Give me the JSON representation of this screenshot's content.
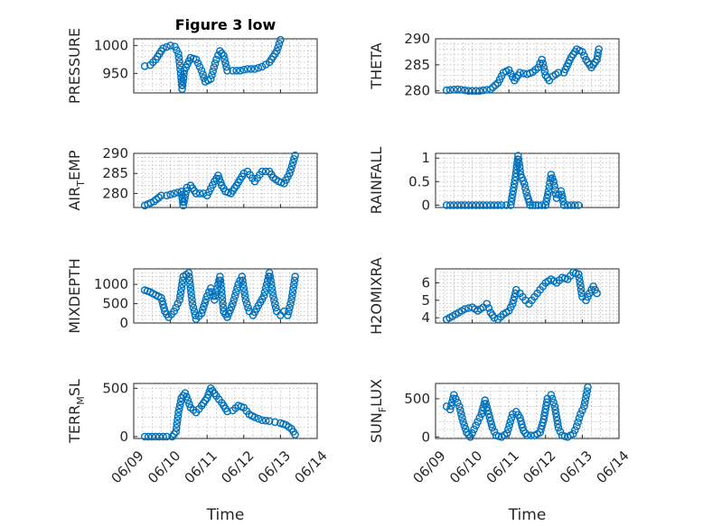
{
  "figure_title": "Figure 3 low",
  "x_label": "Time",
  "x_tick_labels": [
    "06/09",
    "06/10",
    "06/11",
    "06/12",
    "06/13",
    "06/14"
  ],
  "marker_color": "#0072bd",
  "chart_data": [
    {
      "type": "scatter",
      "id": "pressure",
      "title": "Figure 3 low",
      "ylabel": "PRESSURE",
      "ylabel_sub": "",
      "ylim": [
        915,
        1012
      ],
      "yticks": [
        950,
        1000
      ],
      "ytick_labels": [
        "950",
        "1000"
      ],
      "xlabel": "",
      "xlim": [
        0,
        5
      ],
      "grid": true,
      "anchors": [
        [
          0.3,
          963
        ],
        [
          0.45,
          965
        ],
        [
          0.6,
          975
        ],
        [
          0.8,
          995
        ],
        [
          1.0,
          1000
        ],
        [
          1.12,
          998
        ],
        [
          1.22,
          985
        ],
        [
          1.28,
          950
        ],
        [
          1.32,
          922
        ],
        [
          1.38,
          955
        ],
        [
          1.55,
          978
        ],
        [
          1.7,
          975
        ],
        [
          1.85,
          955
        ],
        [
          1.95,
          935
        ],
        [
          2.1,
          940
        ],
        [
          2.25,
          975
        ],
        [
          2.35,
          990
        ],
        [
          2.45,
          982
        ],
        [
          2.55,
          955
        ],
        [
          2.7,
          955
        ],
        [
          2.9,
          955
        ],
        [
          3.1,
          958
        ],
        [
          3.3,
          958
        ],
        [
          3.5,
          962
        ],
        [
          3.7,
          970
        ],
        [
          3.9,
          990
        ],
        [
          4.0,
          1010
        ]
      ]
    },
    {
      "type": "scatter",
      "id": "theta",
      "title": "",
      "ylabel": "THETA",
      "ylabel_sub": "",
      "ylim": [
        279.6,
        290
      ],
      "yticks": [
        280,
        285,
        290
      ],
      "ytick_labels": [
        "280",
        "285",
        "290"
      ],
      "xlabel": "",
      "xlim": [
        0,
        5
      ],
      "grid": true,
      "anchors": [
        [
          0.3,
          280.1
        ],
        [
          0.6,
          280.3
        ],
        [
          0.9,
          280.0
        ],
        [
          1.2,
          280.0
        ],
        [
          1.5,
          280.3
        ],
        [
          1.7,
          281.5
        ],
        [
          1.85,
          283.5
        ],
        [
          2.0,
          284.0
        ],
        [
          2.15,
          282.0
        ],
        [
          2.3,
          283.5
        ],
        [
          2.5,
          283.2
        ],
        [
          2.65,
          283.6
        ],
        [
          2.8,
          284.5
        ],
        [
          2.9,
          286.0
        ],
        [
          3.0,
          283.0
        ],
        [
          3.1,
          282.0
        ],
        [
          3.2,
          282.8
        ],
        [
          3.35,
          283.5
        ],
        [
          3.5,
          283.5
        ],
        [
          3.7,
          286.5
        ],
        [
          3.85,
          288.0
        ],
        [
          4.0,
          287.5
        ],
        [
          4.1,
          286.0
        ],
        [
          4.25,
          284.5
        ],
        [
          4.4,
          286.0
        ],
        [
          4.45,
          288.0
        ]
      ]
    },
    {
      "type": "scatter",
      "id": "air_temp",
      "title": "",
      "ylabel": "AIR",
      "ylabel_sub": "T",
      "ylabel_suffix": "EMP",
      "ylim": [
        276.5,
        290
      ],
      "yticks": [
        280,
        285,
        290
      ],
      "ytick_labels": [
        "280",
        "285",
        "290"
      ],
      "xlabel": "",
      "xlim": [
        0,
        5
      ],
      "grid": true,
      "anchors": [
        [
          0.3,
          277.0
        ],
        [
          0.55,
          278.0
        ],
        [
          0.75,
          279.5
        ],
        [
          0.9,
          279.5
        ],
        [
          1.1,
          280.0
        ],
        [
          1.3,
          280.5
        ],
        [
          1.35,
          277.0
        ],
        [
          1.45,
          281.5
        ],
        [
          1.55,
          282.0
        ],
        [
          1.7,
          280.0
        ],
        [
          1.9,
          280.0
        ],
        [
          2.0,
          279.5
        ],
        [
          2.2,
          283.0
        ],
        [
          2.3,
          284.5
        ],
        [
          2.4,
          282.0
        ],
        [
          2.5,
          280.5
        ],
        [
          2.65,
          280.0
        ],
        [
          2.8,
          282.0
        ],
        [
          3.0,
          285.0
        ],
        [
          3.1,
          285.5
        ],
        [
          3.3,
          283.0
        ],
        [
          3.5,
          285.5
        ],
        [
          3.7,
          285.5
        ],
        [
          3.8,
          284.0
        ],
        [
          3.95,
          283.0
        ],
        [
          4.1,
          282.5
        ],
        [
          4.25,
          285.0
        ],
        [
          4.4,
          289.5
        ]
      ]
    },
    {
      "type": "scatter",
      "id": "rainfall",
      "title": "",
      "ylabel": "RAINFALL",
      "ylabel_sub": "",
      "ylim": [
        -0.05,
        1.1
      ],
      "yticks": [
        0,
        0.5,
        1
      ],
      "ytick_labels": [
        "0",
        "0.5",
        "1"
      ],
      "xlabel": "",
      "xlim": [
        0,
        5
      ],
      "grid": true,
      "anchors": [
        [
          0.3,
          0
        ],
        [
          0.6,
          0
        ],
        [
          0.9,
          0
        ],
        [
          1.2,
          0
        ],
        [
          1.5,
          0
        ],
        [
          1.8,
          0
        ],
        [
          2.05,
          0
        ],
        [
          2.18,
          0.6
        ],
        [
          2.25,
          1.05
        ],
        [
          2.32,
          0.65
        ],
        [
          2.42,
          0.45
        ],
        [
          2.5,
          0.2
        ],
        [
          2.58,
          0
        ],
        [
          2.65,
          0
        ],
        [
          2.72,
          0
        ],
        [
          2.8,
          0
        ],
        [
          2.9,
          0
        ],
        [
          3.0,
          0
        ],
        [
          3.08,
          0.3
        ],
        [
          3.15,
          0.65
        ],
        [
          3.22,
          0.5
        ],
        [
          3.3,
          0.15
        ],
        [
          3.42,
          0.3
        ],
        [
          3.5,
          0
        ],
        [
          3.7,
          0
        ],
        [
          3.9,
          0
        ]
      ]
    },
    {
      "type": "scatter",
      "id": "mixdepth",
      "title": "",
      "ylabel": "MIXDEPTH",
      "ylabel_sub": "",
      "ylim": [
        0,
        1400
      ],
      "yticks": [
        0,
        500,
        1000
      ],
      "ytick_labels": [
        "0",
        "500",
        "1000"
      ],
      "xlabel": "",
      "xlim": [
        0,
        5
      ],
      "grid": true,
      "anchors": [
        [
          0.3,
          850
        ],
        [
          0.45,
          800
        ],
        [
          0.6,
          720
        ],
        [
          0.75,
          650
        ],
        [
          0.85,
          300
        ],
        [
          0.95,
          150
        ],
        [
          1.1,
          300
        ],
        [
          1.25,
          600
        ],
        [
          1.35,
          1200
        ],
        [
          1.5,
          1300
        ],
        [
          1.6,
          500
        ],
        [
          1.7,
          100
        ],
        [
          1.85,
          250
        ],
        [
          2.0,
          700
        ],
        [
          2.1,
          900
        ],
        [
          2.2,
          600
        ],
        [
          2.35,
          1200
        ],
        [
          2.45,
          300
        ],
        [
          2.55,
          150
        ],
        [
          2.7,
          500
        ],
        [
          2.85,
          1000
        ],
        [
          2.95,
          1200
        ],
        [
          3.05,
          600
        ],
        [
          3.15,
          300
        ],
        [
          3.25,
          200
        ],
        [
          3.4,
          450
        ],
        [
          3.55,
          700
        ],
        [
          3.7,
          1300
        ],
        [
          3.8,
          700
        ],
        [
          3.9,
          300
        ],
        [
          4.0,
          200
        ],
        [
          4.1,
          300
        ],
        [
          4.2,
          200
        ],
        [
          4.3,
          600
        ],
        [
          4.4,
          1200
        ]
      ]
    },
    {
      "type": "scatter",
      "id": "h2omixra",
      "title": "",
      "ylabel": "H2OMIXRA",
      "ylabel_sub": "",
      "ylim": [
        3.7,
        6.8
      ],
      "yticks": [
        4,
        5,
        6
      ],
      "ytick_labels": [
        "4",
        "5",
        "6"
      ],
      "xlabel": "",
      "xlim": [
        0,
        5
      ],
      "grid": true,
      "anchors": [
        [
          0.3,
          3.9
        ],
        [
          0.55,
          4.2
        ],
        [
          0.8,
          4.5
        ],
        [
          1.0,
          4.6
        ],
        [
          1.15,
          4.4
        ],
        [
          1.3,
          4.6
        ],
        [
          1.4,
          4.8
        ],
        [
          1.5,
          4.3
        ],
        [
          1.6,
          4.0
        ],
        [
          1.7,
          3.9
        ],
        [
          1.85,
          4.2
        ],
        [
          2.0,
          4.4
        ],
        [
          2.1,
          4.8
        ],
        [
          2.2,
          5.6
        ],
        [
          2.3,
          5.4
        ],
        [
          2.45,
          5.0
        ],
        [
          2.55,
          4.8
        ],
        [
          2.7,
          5.2
        ],
        [
          2.85,
          5.6
        ],
        [
          3.0,
          6.0
        ],
        [
          3.15,
          6.2
        ],
        [
          3.3,
          6.0
        ],
        [
          3.45,
          6.3
        ],
        [
          3.6,
          6.2
        ],
        [
          3.75,
          6.6
        ],
        [
          3.9,
          6.5
        ],
        [
          4.0,
          5.2
        ],
        [
          4.1,
          5.0
        ],
        [
          4.2,
          5.4
        ],
        [
          4.3,
          5.8
        ],
        [
          4.4,
          5.4
        ]
      ]
    },
    {
      "type": "scatter",
      "id": "terr_msl",
      "title": "",
      "ylabel": "TERR",
      "ylabel_sub": "M",
      "ylabel_suffix": "SL",
      "ylim": [
        -20,
        550
      ],
      "yticks": [
        0,
        500
      ],
      "ytick_labels": [
        "0",
        "500"
      ],
      "xlabel": "Time",
      "xlim": [
        0,
        5
      ],
      "grid": true,
      "anchors": [
        [
          0.3,
          0
        ],
        [
          0.6,
          0
        ],
        [
          0.9,
          0
        ],
        [
          1.05,
          0
        ],
        [
          1.15,
          50
        ],
        [
          1.22,
          250
        ],
        [
          1.3,
          400
        ],
        [
          1.4,
          450
        ],
        [
          1.55,
          300
        ],
        [
          1.7,
          250
        ],
        [
          1.85,
          320
        ],
        [
          2.0,
          400
        ],
        [
          2.1,
          500
        ],
        [
          2.25,
          420
        ],
        [
          2.4,
          350
        ],
        [
          2.55,
          260
        ],
        [
          2.7,
          270
        ],
        [
          2.85,
          320
        ],
        [
          3.0,
          300
        ],
        [
          3.15,
          230
        ],
        [
          3.3,
          200
        ],
        [
          3.5,
          170
        ],
        [
          3.7,
          160
        ],
        [
          3.85,
          150
        ],
        [
          4.0,
          140
        ],
        [
          4.15,
          120
        ],
        [
          4.3,
          80
        ],
        [
          4.4,
          20
        ]
      ]
    },
    {
      "type": "scatter",
      "id": "sun_flux",
      "title": "",
      "ylabel": "SUN",
      "ylabel_sub": "F",
      "ylabel_suffix": "LUX",
      "ylim": [
        -20,
        700
      ],
      "yticks": [
        0,
        500
      ],
      "ytick_labels": [
        "0",
        "500"
      ],
      "xlabel": "Time",
      "xlim": [
        0,
        5
      ],
      "grid": true,
      "anchors": [
        [
          0.3,
          400
        ],
        [
          0.4,
          360
        ],
        [
          0.5,
          550
        ],
        [
          0.65,
          400
        ],
        [
          0.75,
          200
        ],
        [
          0.85,
          60
        ],
        [
          0.95,
          0
        ],
        [
          1.1,
          150
        ],
        [
          1.25,
          300
        ],
        [
          1.35,
          480
        ],
        [
          1.45,
          300
        ],
        [
          1.55,
          120
        ],
        [
          1.65,
          20
        ],
        [
          1.8,
          0
        ],
        [
          1.95,
          50
        ],
        [
          2.1,
          300
        ],
        [
          2.2,
          330
        ],
        [
          2.3,
          250
        ],
        [
          2.4,
          80
        ],
        [
          2.5,
          20
        ],
        [
          2.7,
          20
        ],
        [
          2.85,
          60
        ],
        [
          2.95,
          230
        ],
        [
          3.05,
          500
        ],
        [
          3.15,
          550
        ],
        [
          3.25,
          400
        ],
        [
          3.35,
          120
        ],
        [
          3.45,
          20
        ],
        [
          3.6,
          0
        ],
        [
          3.75,
          40
        ],
        [
          3.85,
          140
        ],
        [
          3.95,
          300
        ],
        [
          4.05,
          400
        ],
        [
          4.15,
          650
        ]
      ]
    }
  ]
}
